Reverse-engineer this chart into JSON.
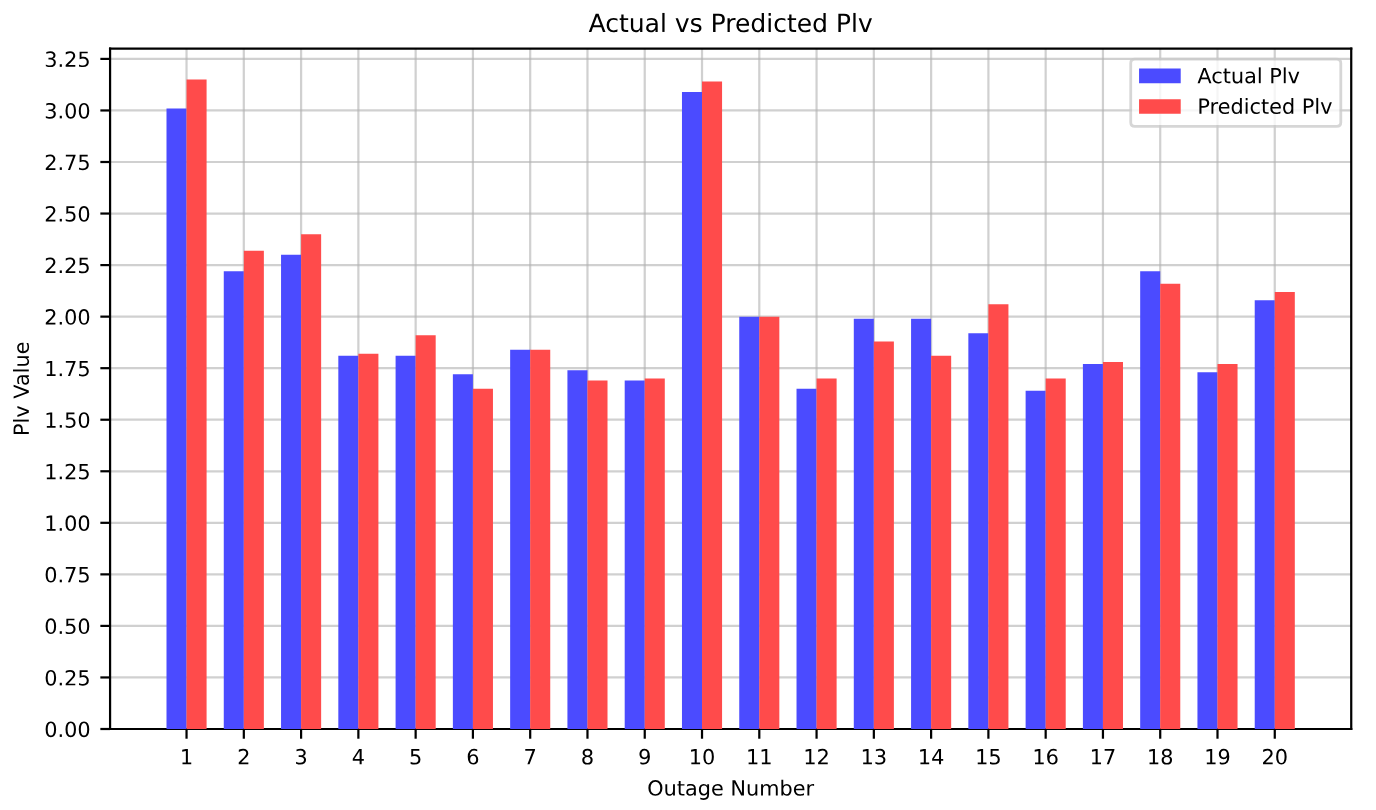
{
  "chart_data": {
    "type": "bar",
    "title": "Actual vs Predicted Plv",
    "xlabel": "Outage Number",
    "ylabel": "Plv Value",
    "categories": [
      "1",
      "2",
      "3",
      "4",
      "5",
      "6",
      "7",
      "8",
      "9",
      "10",
      "11",
      "12",
      "13",
      "14",
      "15",
      "16",
      "17",
      "18",
      "19",
      "20"
    ],
    "series": [
      {
        "name": "Actual Plv",
        "color": "#4b4bff",
        "values": [
          3.01,
          2.22,
          2.3,
          1.81,
          1.81,
          1.72,
          1.84,
          1.74,
          1.69,
          3.09,
          2.0,
          1.65,
          1.99,
          1.99,
          1.92,
          1.64,
          1.77,
          2.22,
          1.73,
          2.08
        ]
      },
      {
        "name": "Predicted Plv",
        "color": "#ff4b4b",
        "values": [
          3.15,
          2.32,
          2.4,
          1.82,
          1.91,
          1.65,
          1.84,
          1.69,
          1.7,
          3.14,
          2.0,
          1.7,
          1.88,
          1.81,
          2.06,
          1.7,
          1.78,
          2.16,
          1.77,
          2.12
        ]
      }
    ],
    "ylim": [
      0,
      3.3
    ],
    "yticks": [
      {
        "value": 0,
        "label": "0.00"
      },
      {
        "value": 0.25,
        "label": "0.25"
      },
      {
        "value": 0.5,
        "label": "0.50"
      },
      {
        "value": 0.75,
        "label": "0.75"
      },
      {
        "value": 1,
        "label": "1.00"
      },
      {
        "value": 1.25,
        "label": "1.25"
      },
      {
        "value": 1.5,
        "label": "1.50"
      },
      {
        "value": 1.75,
        "label": "1.75"
      },
      {
        "value": 2,
        "label": "2.00"
      },
      {
        "value": 2.25,
        "label": "2.25"
      },
      {
        "value": 2.5,
        "label": "2.50"
      },
      {
        "value": 2.75,
        "label": "2.75"
      },
      {
        "value": 3,
        "label": "3.00"
      },
      {
        "value": 3.25,
        "label": "3.25"
      }
    ],
    "grid": true,
    "legend": "top right"
  }
}
